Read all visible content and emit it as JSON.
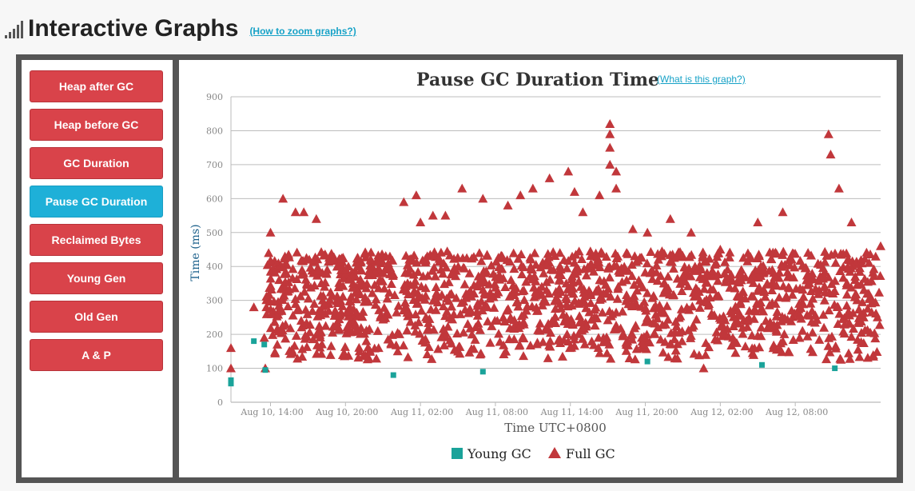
{
  "header": {
    "title": "Interactive Graphs",
    "zoom_link": "(How to zoom graphs?)"
  },
  "sidebar": {
    "buttons": [
      {
        "label": "Heap after GC",
        "active": false
      },
      {
        "label": "Heap before GC",
        "active": false
      },
      {
        "label": "GC Duration",
        "active": false
      },
      {
        "label": "Pause GC Duration",
        "active": true
      },
      {
        "label": "Reclaimed Bytes",
        "active": false
      },
      {
        "label": "Young Gen",
        "active": false
      },
      {
        "label": "Old Gen",
        "active": false
      },
      {
        "label": "A & P",
        "active": false
      }
    ]
  },
  "chart_help_link": "(What is this graph?)",
  "colors": {
    "full_gc": "#c1373b",
    "young_gc": "#1aa39a",
    "active_button": "#1eb0d8",
    "button": "#d9434a"
  },
  "chart_data": {
    "type": "scatter",
    "title": "Pause GC Duration Time",
    "xlabel": "Time UTC+0800",
    "ylabel": "Time (ms)",
    "ylim": [
      0,
      900
    ],
    "yticks": [
      0,
      100,
      200,
      300,
      400,
      500,
      600,
      700,
      800,
      900
    ],
    "xlim": [
      "Aug 10, 10:50",
      "Aug 12, 14:50"
    ],
    "xticks": [
      "Aug 10, 14:00",
      "Aug 10, 20:00",
      "Aug 11, 02:00",
      "Aug 11, 08:00",
      "Aug 11, 14:00",
      "Aug 11, 20:00",
      "Aug 12, 02:00",
      "Aug 12, 08:00"
    ],
    "grid": true,
    "legend": "bottom-center",
    "series": [
      {
        "name": "Young GC",
        "marker": "square",
        "color": "#1aa39a",
        "points": [
          {
            "x": "Aug 10, 10:50",
            "y": 55
          },
          {
            "x": "Aug 10, 10:50",
            "y": 65
          },
          {
            "x": "Aug 10, 12:40",
            "y": 180
          },
          {
            "x": "Aug 10, 13:30",
            "y": 170
          },
          {
            "x": "Aug 10, 13:35",
            "y": 95
          },
          {
            "x": "Aug 10, 23:50",
            "y": 80
          },
          {
            "x": "Aug 11, 07:00",
            "y": 90
          },
          {
            "x": "Aug 11, 20:10",
            "y": 120
          },
          {
            "x": "Aug 12, 05:20",
            "y": 110
          },
          {
            "x": "Aug 12, 11:10",
            "y": 100
          }
        ]
      },
      {
        "name": "Full GC",
        "marker": "triangle",
        "color": "#c1373b",
        "points": [
          {
            "x": "Aug 10, 10:50",
            "y": 160
          },
          {
            "x": "Aug 10, 10:50",
            "y": 100
          },
          {
            "x": "Aug 10, 12:40",
            "y": 280
          },
          {
            "x": "Aug 10, 13:30",
            "y": 190
          },
          {
            "x": "Aug 10, 13:35",
            "y": 100
          },
          {
            "x": "Aug 10, 13:40",
            "y": 280
          },
          {
            "x": "Aug 10, 14:00",
            "y": 500
          },
          {
            "x": "Aug 10, 15:00",
            "y": 600
          },
          {
            "x": "Aug 10, 16:00",
            "y": 560
          },
          {
            "x": "Aug 10, 16:40",
            "y": 560
          },
          {
            "x": "Aug 10, 17:40",
            "y": 540
          },
          {
            "x": "Aug 10, 19:00",
            "y": 420
          },
          {
            "x": "Aug 10, 21:00",
            "y": 400
          },
          {
            "x": "Aug 10, 22:00",
            "y": 420
          },
          {
            "x": "Aug 11, 00:40",
            "y": 590
          },
          {
            "x": "Aug 11, 01:40",
            "y": 610
          },
          {
            "x": "Aug 11, 02:00",
            "y": 530
          },
          {
            "x": "Aug 11, 03:00",
            "y": 550
          },
          {
            "x": "Aug 11, 04:00",
            "y": 550
          },
          {
            "x": "Aug 11, 05:20",
            "y": 630
          },
          {
            "x": "Aug 11, 07:00",
            "y": 600
          },
          {
            "x": "Aug 11, 09:00",
            "y": 580
          },
          {
            "x": "Aug 11, 10:00",
            "y": 610
          },
          {
            "x": "Aug 11, 11:00",
            "y": 630
          },
          {
            "x": "Aug 11, 12:20",
            "y": 660
          },
          {
            "x": "Aug 11, 13:50",
            "y": 680
          },
          {
            "x": "Aug 11, 14:20",
            "y": 620
          },
          {
            "x": "Aug 11, 15:00",
            "y": 560
          },
          {
            "x": "Aug 11, 16:20",
            "y": 610
          },
          {
            "x": "Aug 11, 17:10",
            "y": 820
          },
          {
            "x": "Aug 11, 17:10",
            "y": 790
          },
          {
            "x": "Aug 11, 17:10",
            "y": 750
          },
          {
            "x": "Aug 11, 17:10",
            "y": 700
          },
          {
            "x": "Aug 11, 17:40",
            "y": 680
          },
          {
            "x": "Aug 11, 17:40",
            "y": 630
          },
          {
            "x": "Aug 11, 19:00",
            "y": 510
          },
          {
            "x": "Aug 11, 20:10",
            "y": 500
          },
          {
            "x": "Aug 11, 22:00",
            "y": 540
          },
          {
            "x": "Aug 11, 23:40",
            "y": 500
          },
          {
            "x": "Aug 12, 00:40",
            "y": 100
          },
          {
            "x": "Aug 12, 02:00",
            "y": 450
          },
          {
            "x": "Aug 12, 05:00",
            "y": 530
          },
          {
            "x": "Aug 12, 07:00",
            "y": 560
          },
          {
            "x": "Aug 12, 10:40",
            "y": 790
          },
          {
            "x": "Aug 12, 10:50",
            "y": 730
          },
          {
            "x": "Aug 12, 11:30",
            "y": 630
          },
          {
            "x": "Aug 12, 12:30",
            "y": 530
          },
          {
            "x": "Aug 12, 14:50",
            "y": 460
          }
        ]
      }
    ]
  }
}
